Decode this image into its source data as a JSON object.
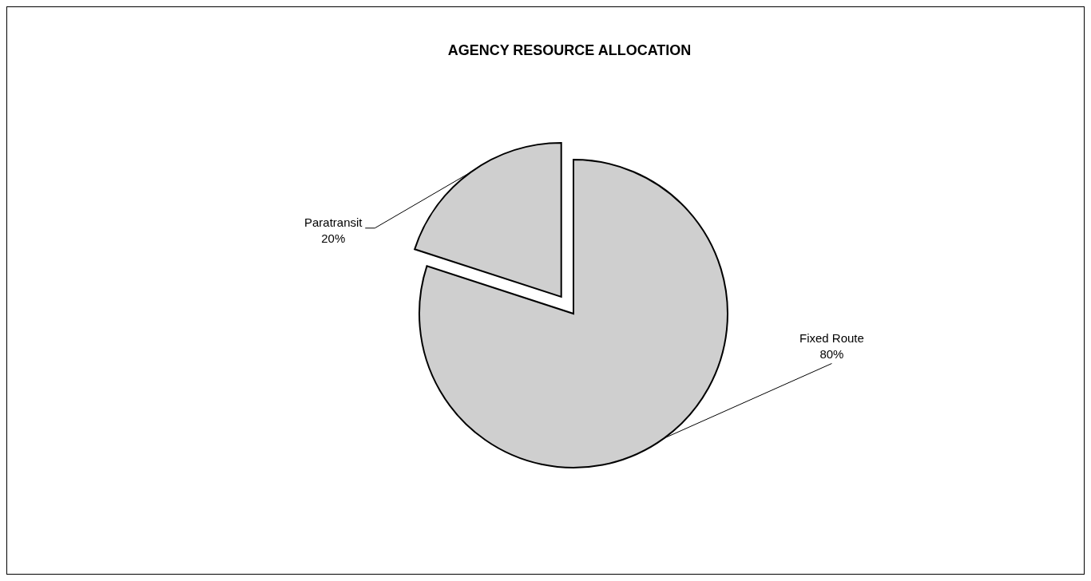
{
  "chart_data": {
    "type": "pie",
    "title": "AGENCY RESOURCE ALLOCATION",
    "categories": [
      "Fixed Route",
      "Paratransit"
    ],
    "values": [
      80,
      20
    ],
    "colors": [
      "#cfcfcf",
      "#cfcfcf"
    ],
    "value_labels": [
      "80%",
      "20%"
    ],
    "legend": false
  }
}
